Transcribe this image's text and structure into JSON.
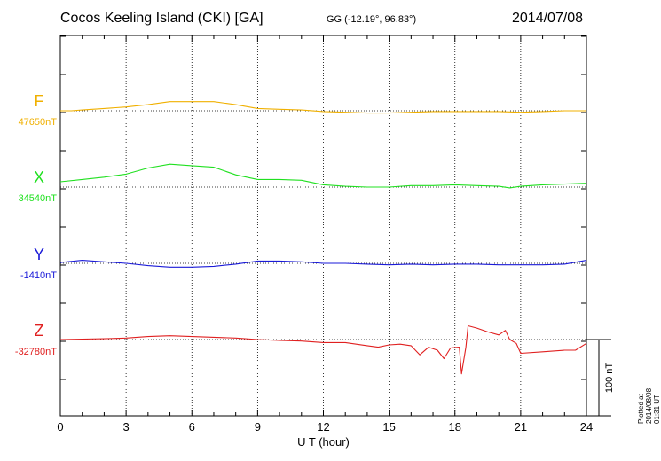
{
  "header": {
    "title": "Cocos Keeling Island (CKI)  [GA]",
    "coords": "GG (-12.19°,  96.83°)",
    "date": "2014/07/08"
  },
  "plotted_note": "Plotted at 2014/08/08 01:31  UT",
  "scale_label": "100 nT",
  "colors": {
    "F": "#f0b000",
    "X": "#20e020",
    "Y": "#1a1ad8",
    "Z": "#e02020",
    "axis": "#000000"
  },
  "chart_data": {
    "type": "line",
    "xlabel": "U T (hour)",
    "xlim": [
      0,
      24
    ],
    "xticks": [
      "0",
      "3",
      "6",
      "9",
      "12",
      "15",
      "18",
      "21",
      "24"
    ],
    "scale_nT": 100,
    "series": [
      {
        "name": "F",
        "baseline_label": "47650nT",
        "baseline_nT": 47650,
        "points": [
          [
            0,
            0
          ],
          [
            0.5,
            0
          ],
          [
            1,
            1
          ],
          [
            2,
            3
          ],
          [
            3,
            5
          ],
          [
            4,
            8
          ],
          [
            5,
            12
          ],
          [
            6,
            12
          ],
          [
            7,
            12
          ],
          [
            8,
            8
          ],
          [
            9,
            3
          ],
          [
            10,
            2
          ],
          [
            11,
            1
          ],
          [
            12,
            -1
          ],
          [
            13,
            -2
          ],
          [
            14,
            -3
          ],
          [
            15,
            -3
          ],
          [
            16,
            -2
          ],
          [
            17,
            -1
          ],
          [
            18,
            -1
          ],
          [
            19,
            -1
          ],
          [
            20,
            -1
          ],
          [
            21,
            -2
          ],
          [
            22,
            -1
          ],
          [
            23,
            0
          ],
          [
            24,
            0
          ]
        ]
      },
      {
        "name": "X",
        "baseline_label": "34540nT",
        "baseline_nT": 34540,
        "points": [
          [
            0,
            7
          ],
          [
            1,
            10
          ],
          [
            2,
            13
          ],
          [
            3,
            17
          ],
          [
            4,
            25
          ],
          [
            5,
            30
          ],
          [
            6,
            28
          ],
          [
            7,
            26
          ],
          [
            8,
            16
          ],
          [
            9,
            10
          ],
          [
            10,
            10
          ],
          [
            11,
            9
          ],
          [
            12,
            3
          ],
          [
            13,
            1
          ],
          [
            14,
            0
          ],
          [
            15,
            0
          ],
          [
            16,
            2
          ],
          [
            17,
            2
          ],
          [
            18,
            3
          ],
          [
            19,
            2
          ],
          [
            20,
            1
          ],
          [
            20.5,
            -1
          ],
          [
            21,
            1
          ],
          [
            22,
            3
          ],
          [
            23,
            4
          ],
          [
            24,
            5
          ]
        ]
      },
      {
        "name": "Y",
        "baseline_label": "-1410nT",
        "baseline_nT": -1410,
        "points": [
          [
            0,
            1
          ],
          [
            1,
            4
          ],
          [
            2,
            2
          ],
          [
            3,
            0
          ],
          [
            4,
            -3
          ],
          [
            5,
            -5
          ],
          [
            6,
            -5
          ],
          [
            7,
            -4
          ],
          [
            8,
            -1
          ],
          [
            9,
            3
          ],
          [
            10,
            3
          ],
          [
            11,
            2
          ],
          [
            12,
            0
          ],
          [
            13,
            0
          ],
          [
            14,
            -1
          ],
          [
            15,
            -2
          ],
          [
            16,
            -1
          ],
          [
            17,
            -2
          ],
          [
            18,
            -1
          ],
          [
            19,
            -1
          ],
          [
            20,
            -2
          ],
          [
            21,
            -2
          ],
          [
            22,
            -2
          ],
          [
            23,
            -1
          ],
          [
            24,
            4
          ]
        ]
      },
      {
        "name": "Z",
        "baseline_label": "-32780nT",
        "baseline_nT": -32780,
        "points": [
          [
            0,
            0
          ],
          [
            2,
            1
          ],
          [
            3,
            2
          ],
          [
            4,
            4
          ],
          [
            5,
            5
          ],
          [
            6,
            4
          ],
          [
            7,
            3
          ],
          [
            8,
            2
          ],
          [
            9,
            0
          ],
          [
            10,
            -1
          ],
          [
            11,
            -2
          ],
          [
            12,
            -4
          ],
          [
            13,
            -4
          ],
          [
            14,
            -8
          ],
          [
            14.5,
            -10
          ],
          [
            15,
            -7
          ],
          [
            15.5,
            -6
          ],
          [
            16,
            -8
          ],
          [
            16.4,
            -20
          ],
          [
            16.8,
            -10
          ],
          [
            17.2,
            -14
          ],
          [
            17.5,
            -25
          ],
          [
            17.8,
            -11
          ],
          [
            18.2,
            -10
          ],
          [
            18.3,
            -45
          ],
          [
            18.5,
            -10
          ],
          [
            18.6,
            18
          ],
          [
            19,
            15
          ],
          [
            19.5,
            10
          ],
          [
            20,
            6
          ],
          [
            20.3,
            12
          ],
          [
            20.5,
            0
          ],
          [
            20.8,
            -5
          ],
          [
            21,
            -18
          ],
          [
            22,
            -16
          ],
          [
            23,
            -14
          ],
          [
            23.5,
            -14
          ],
          [
            24,
            -5
          ]
        ]
      }
    ]
  }
}
